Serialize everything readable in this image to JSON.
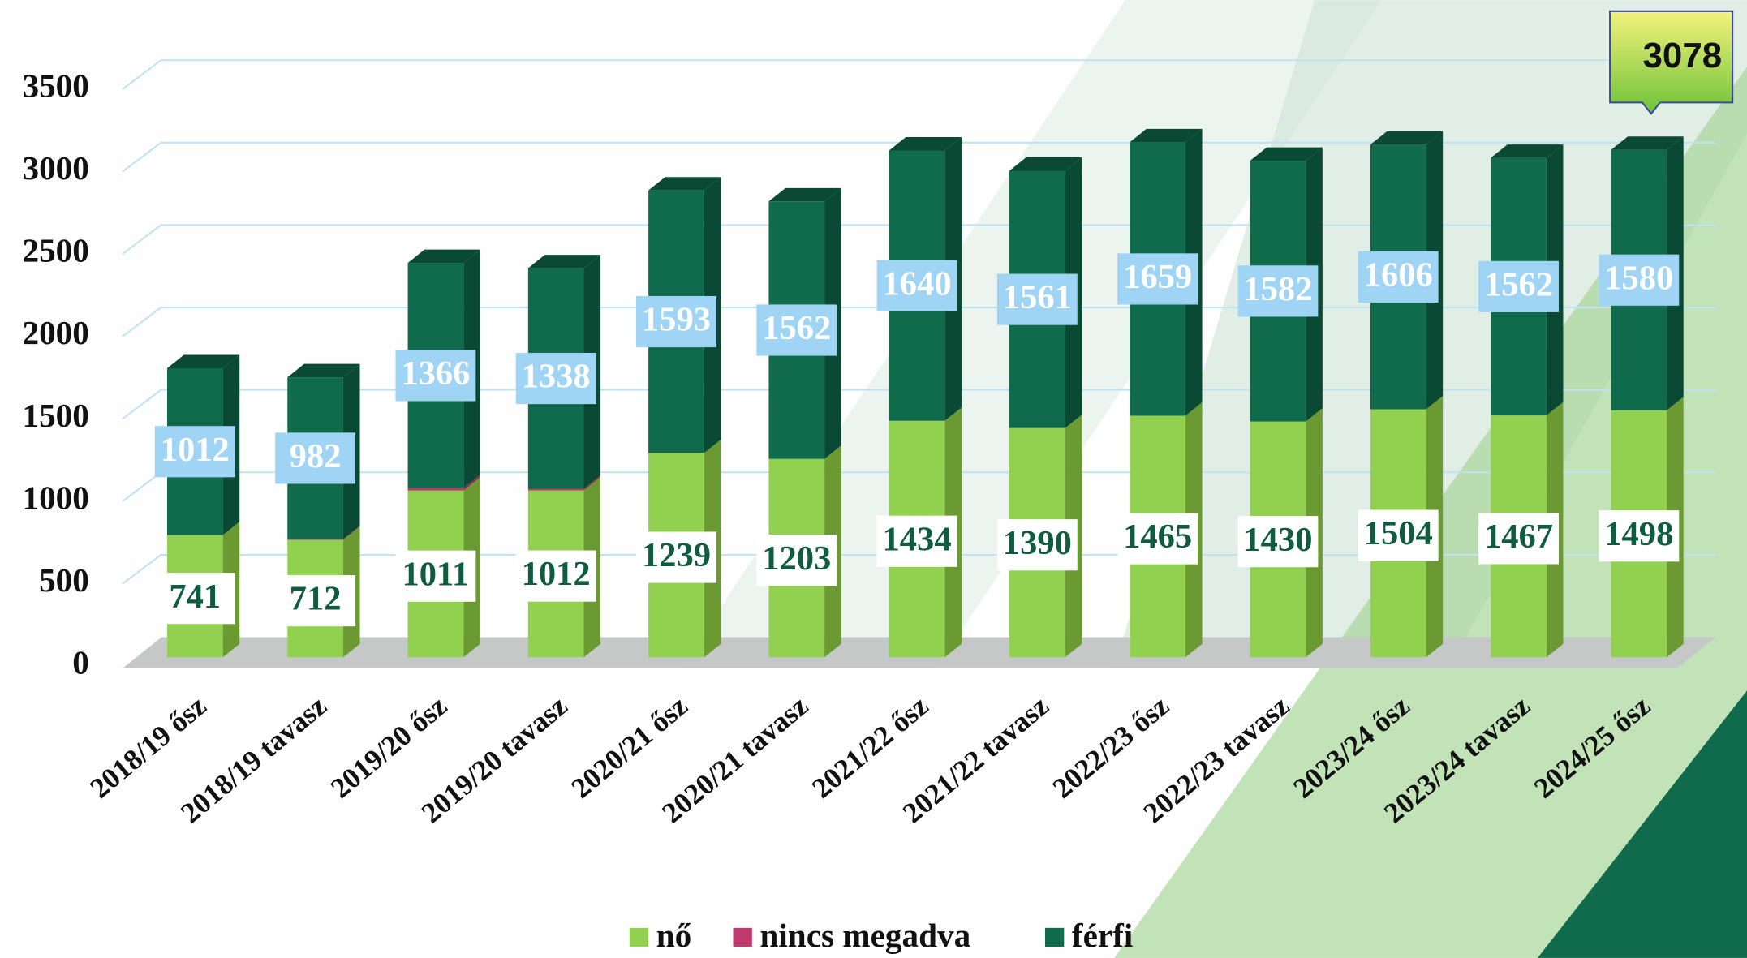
{
  "chart_data": {
    "type": "bar",
    "stacked": true,
    "categories": [
      "2018/19 ősz",
      "2018/19 tavasz",
      "2019/20 ősz",
      "2019/20 tavasz",
      "2020/21 ősz",
      "2020/21 tavasz",
      "2021/22 ősz",
      "2021/22 tavasz",
      "2022/23 ősz",
      "2022/23 tavasz",
      "2023/24 ősz",
      "2023/24 tavasz",
      "2024/25 ősz"
    ],
    "series": [
      {
        "name": "nő",
        "color": "#92d050",
        "side": "#6b9a32",
        "values": [
          741,
          712,
          1011,
          1012,
          1239,
          1203,
          1434,
          1390,
          1465,
          1430,
          1504,
          1467,
          1498
        ]
      },
      {
        "name": "nincs megadva",
        "color": "#be3a6e",
        "side": "#8e2a52",
        "values": [
          0,
          4,
          15,
          10,
          0,
          0,
          0,
          0,
          0,
          0,
          0,
          0,
          0
        ]
      },
      {
        "name": "férfi",
        "color": "#0f6b4b",
        "side": "#0a4a34",
        "values": [
          1012,
          982,
          1366,
          1338,
          1593,
          1562,
          1640,
          1561,
          1659,
          1582,
          1606,
          1562,
          1580
        ]
      }
    ],
    "ylim": [
      0,
      3500
    ],
    "yticks": [
      0,
      500,
      1000,
      1500,
      2000,
      2500,
      3000,
      3500
    ],
    "grid": true,
    "annotation": 3078
  }
}
